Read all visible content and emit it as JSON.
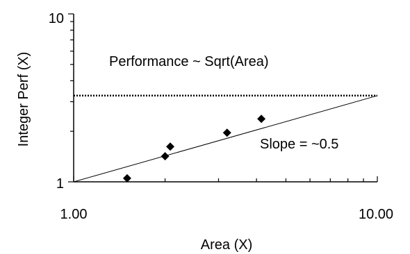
{
  "chart_data": {
    "type": "scatter",
    "title": "",
    "xlabel": "Area (X)",
    "ylabel": "Integer Perf (X)",
    "xscale": "log",
    "yscale": "log",
    "xlim": [
      1,
      10
    ],
    "ylim": [
      1,
      10
    ],
    "x_tick_labels": [
      "1.00",
      "10.00"
    ],
    "y_tick_labels": [
      "1",
      "10"
    ],
    "grid": false,
    "points": [
      {
        "x": 1.5,
        "y": 1.05
      },
      {
        "x": 2.0,
        "y": 1.42
      },
      {
        "x": 2.08,
        "y": 1.62
      },
      {
        "x": 3.2,
        "y": 1.96
      },
      {
        "x": 4.15,
        "y": 2.37
      }
    ],
    "trendline": {
      "from": [
        1,
        1.0
      ],
      "to": [
        10,
        3.26
      ]
    },
    "reference_line": {
      "y": 3.26,
      "style": "dotted"
    },
    "annotations": [
      {
        "text": "Performance ~ Sqrt(Area)"
      },
      {
        "text": "Slope = ~0.5"
      }
    ]
  }
}
